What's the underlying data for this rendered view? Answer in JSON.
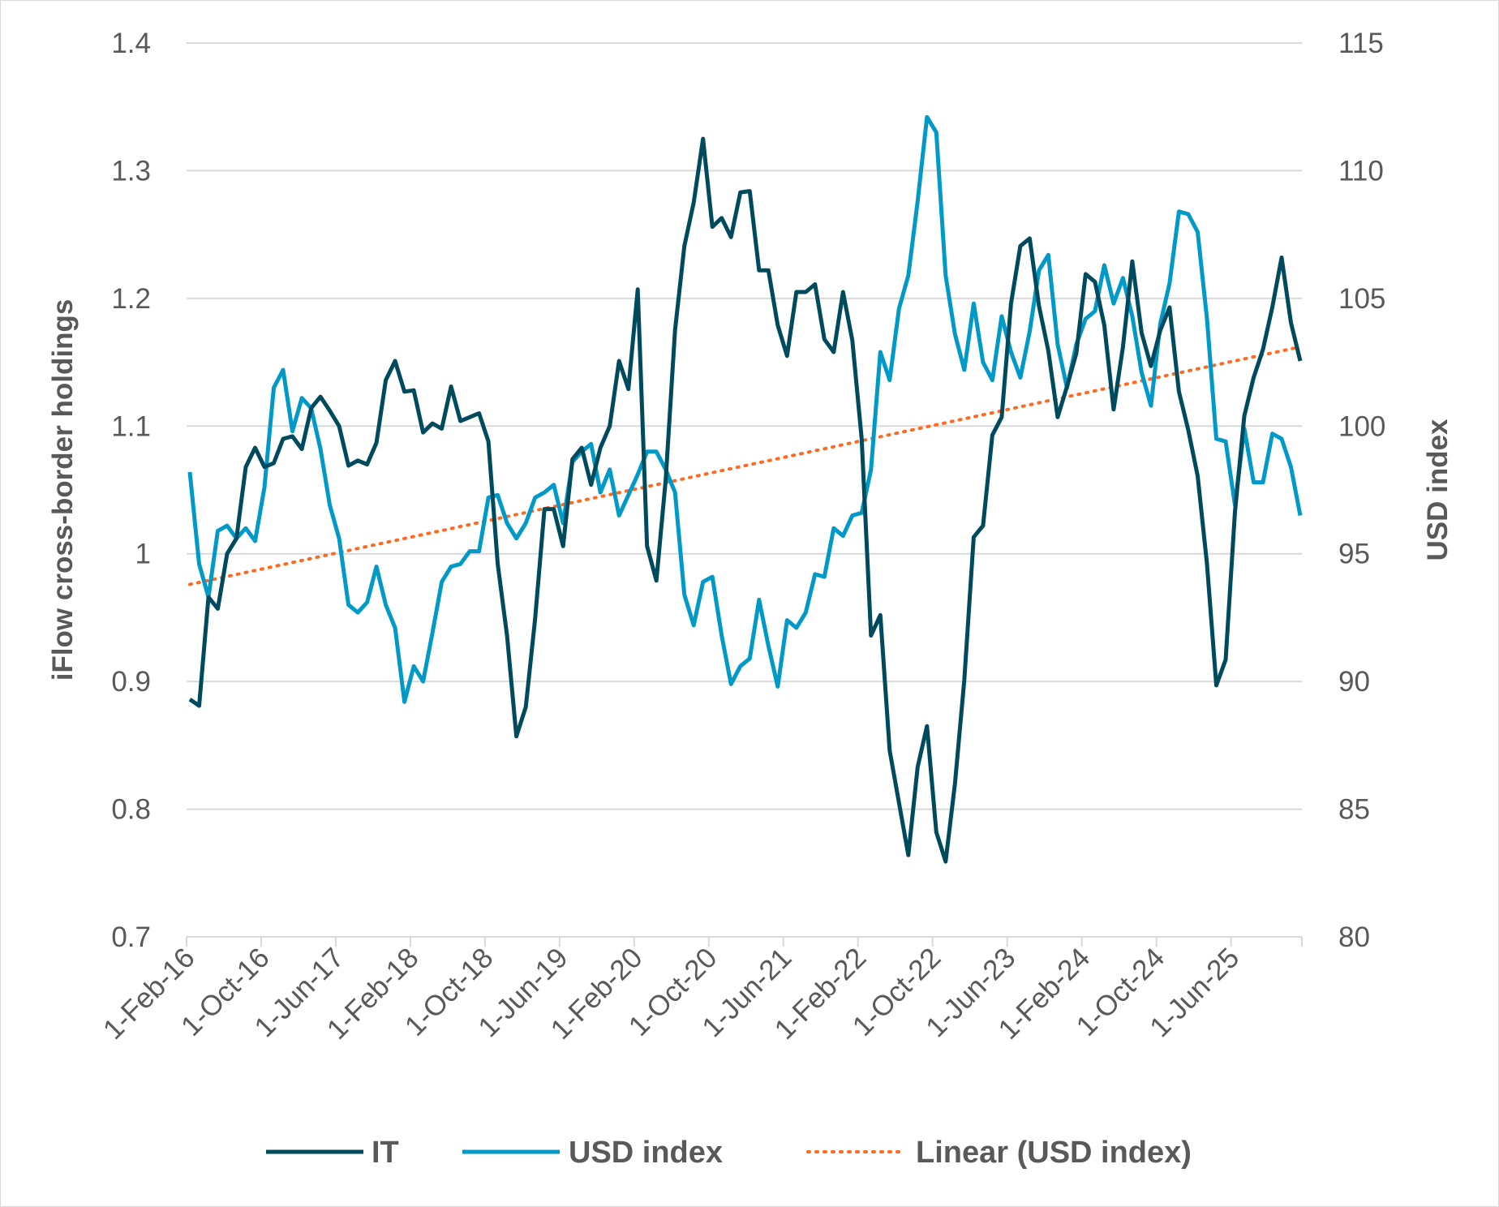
{
  "chart_data": {
    "type": "line",
    "ylabel_left": "iFlow cross-border holdings",
    "ylabel_right": "USD index",
    "ylim_left": [
      0.7,
      1.4
    ],
    "ylim_right": [
      80,
      115
    ],
    "yticks_left": [
      "0.7",
      "0.8",
      "0.9",
      "1",
      "1.1",
      "1.2",
      "1.3",
      "1.4"
    ],
    "yticks_right": [
      "80",
      "85",
      "90",
      "95",
      "100",
      "105",
      "110",
      "115"
    ],
    "xticks": [
      "1-Feb-16",
      "1-Oct-16",
      "1-Jun-17",
      "1-Feb-18",
      "1-Oct-18",
      "1-Jun-19",
      "1-Feb-20",
      "1-Oct-20",
      "1-Jun-21",
      "1-Feb-22",
      "1-Oct-22",
      "1-Jun-23",
      "1-Feb-24",
      "1-Oct-24",
      "1-Jun-25"
    ],
    "grid": true,
    "legend_position": "bottom",
    "x": [
      "1-Feb-16",
      "1-Mar-16",
      "1-Apr-16",
      "1-May-16",
      "1-Jun-16",
      "1-Jul-16",
      "1-Aug-16",
      "1-Sep-16",
      "1-Oct-16",
      "1-Nov-16",
      "1-Dec-16",
      "1-Jan-17",
      "1-Feb-17",
      "1-Mar-17",
      "1-Apr-17",
      "1-May-17",
      "1-Jun-17",
      "1-Jul-17",
      "1-Aug-17",
      "1-Sep-17",
      "1-Oct-17",
      "1-Nov-17",
      "1-Dec-17",
      "1-Jan-18",
      "1-Feb-18",
      "1-Mar-18",
      "1-Apr-18",
      "1-May-18",
      "1-Jun-18",
      "1-Jul-18",
      "1-Aug-18",
      "1-Sep-18",
      "1-Oct-18",
      "1-Nov-18",
      "1-Dec-18",
      "1-Jan-19",
      "1-Feb-19",
      "1-Mar-19",
      "1-Apr-19",
      "1-May-19",
      "1-Jun-19",
      "1-Jul-19",
      "1-Aug-19",
      "1-Sep-19",
      "1-Oct-19",
      "1-Nov-19",
      "1-Dec-19",
      "1-Jan-20",
      "1-Feb-20",
      "1-Mar-20",
      "1-Apr-20",
      "1-May-20",
      "1-Jun-20",
      "1-Jul-20",
      "1-Aug-20",
      "1-Sep-20",
      "1-Oct-20",
      "1-Nov-20",
      "1-Dec-20",
      "1-Jan-21",
      "1-Feb-21",
      "1-Mar-21",
      "1-Apr-21",
      "1-May-21",
      "1-Jun-21",
      "1-Jul-21",
      "1-Aug-21",
      "1-Sep-21",
      "1-Oct-21",
      "1-Nov-21",
      "1-Dec-21",
      "1-Jan-22",
      "1-Feb-22",
      "1-Mar-22",
      "1-Apr-22",
      "1-May-22",
      "1-Jun-22",
      "1-Jul-22",
      "1-Aug-22",
      "1-Sep-22",
      "1-Oct-22",
      "1-Nov-22",
      "1-Dec-22",
      "1-Jan-23",
      "1-Feb-23",
      "1-Mar-23",
      "1-Apr-23",
      "1-May-23",
      "1-Jun-23",
      "1-Jul-23",
      "1-Aug-23",
      "1-Sep-23",
      "1-Oct-23",
      "1-Nov-23",
      "1-Dec-23",
      "1-Jan-24",
      "1-Feb-24",
      "1-Mar-24",
      "1-Apr-24",
      "1-May-24",
      "1-Jun-24",
      "1-Jul-24",
      "1-Aug-24",
      "1-Sep-24",
      "1-Oct-24",
      "1-Nov-24",
      "1-Dec-24",
      "1-Jan-25",
      "1-Feb-25",
      "1-Mar-25",
      "1-Apr-25",
      "1-May-25",
      "1-Jun-25",
      "1-Jul-25",
      "1-Aug-25",
      "1-Sep-25",
      "1-Oct-25",
      "1-Nov-25",
      "1-Dec-25",
      "1-Jan-26"
    ],
    "series": [
      {
        "name": "IT",
        "axis": "left",
        "color": "#004a5e",
        "values": [
          0.886,
          0.881,
          0.966,
          0.957,
          1.0,
          1.012,
          1.068,
          1.083,
          1.068,
          1.071,
          1.09,
          1.092,
          1.082,
          1.114,
          1.123,
          1.112,
          1.1,
          1.069,
          1.073,
          1.07,
          1.087,
          1.136,
          1.151,
          1.127,
          1.128,
          1.095,
          1.102,
          1.098,
          1.131,
          1.104,
          1.107,
          1.11,
          1.088,
          0.992,
          0.936,
          0.857,
          0.88,
          0.949,
          1.035,
          1.035,
          1.006,
          1.074,
          1.083,
          1.054,
          1.083,
          1.1,
          1.151,
          1.129,
          1.207,
          1.006,
          0.979,
          1.058,
          1.175,
          1.241,
          1.275,
          1.325,
          1.256,
          1.263,
          1.248,
          1.283,
          1.284,
          1.222,
          1.222,
          1.179,
          1.155,
          1.205,
          1.205,
          1.211,
          1.168,
          1.158,
          1.205,
          1.167,
          1.09,
          0.936,
          0.952,
          0.846,
          0.805,
          0.764,
          0.833,
          0.865,
          0.782,
          0.759,
          0.82,
          0.901,
          1.013,
          1.022,
          1.093,
          1.107,
          1.196,
          1.241,
          1.247,
          1.194,
          1.159,
          1.107,
          1.131,
          1.157,
          1.219,
          1.213,
          1.179,
          1.113,
          1.162,
          1.229,
          1.173,
          1.147,
          1.175,
          1.193,
          1.127,
          1.097,
          1.061,
          0.992,
          0.897,
          0.917,
          1.033,
          1.108,
          1.138,
          1.16,
          1.193,
          1.232,
          1.181,
          1.151
        ]
      },
      {
        "name": "USD index",
        "axis": "right",
        "color": "#0099c8",
        "values": [
          98.2,
          94.6,
          93.3,
          95.9,
          96.1,
          95.6,
          96.0,
          95.5,
          97.6,
          101.5,
          102.2,
          99.8,
          101.1,
          100.7,
          99.1,
          96.9,
          95.6,
          93.0,
          92.7,
          93.1,
          94.5,
          93.0,
          92.1,
          89.2,
          90.6,
          90.0,
          91.9,
          93.9,
          94.5,
          94.6,
          95.1,
          95.1,
          97.2,
          97.3,
          96.2,
          95.6,
          96.2,
          97.2,
          97.4,
          97.7,
          96.2,
          98.6,
          99.0,
          99.3,
          97.4,
          98.3,
          96.5,
          97.3,
          98.1,
          99.0,
          99.0,
          98.3,
          97.4,
          93.4,
          92.2,
          93.9,
          94.1,
          91.8,
          89.9,
          90.6,
          90.9,
          93.2,
          91.4,
          89.8,
          92.4,
          92.1,
          92.7,
          94.2,
          94.1,
          96.0,
          95.7,
          96.5,
          96.6,
          98.3,
          102.9,
          101.8,
          104.6,
          105.9,
          108.8,
          112.1,
          111.5,
          105.9,
          103.6,
          102.2,
          104.8,
          102.5,
          101.8,
          104.3,
          102.9,
          101.9,
          103.7,
          106.1,
          106.7,
          103.2,
          101.5,
          103.2,
          104.2,
          104.5,
          106.3,
          104.8,
          105.8,
          104.3,
          102.1,
          100.8,
          104.0,
          105.6,
          108.4,
          108.3,
          107.6,
          104.2,
          99.5,
          99.4,
          96.9,
          99.9,
          97.8,
          97.8,
          99.7,
          99.5,
          98.4,
          96.5
        ]
      },
      {
        "name": "Linear (USD index)",
        "axis": "right",
        "color": "#ff6a21",
        "style": "dotted",
        "trendline": "linear",
        "endpoints": [
          93.8,
          103.1
        ]
      }
    ]
  }
}
